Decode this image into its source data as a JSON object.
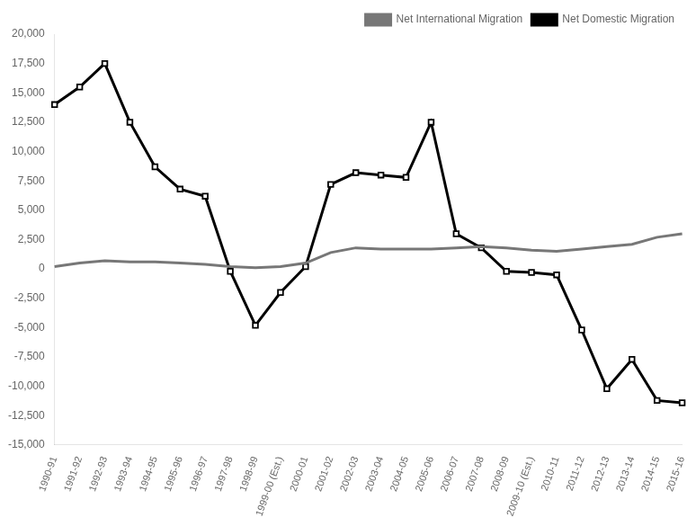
{
  "chart_data": {
    "type": "line",
    "categories": [
      "1990-91",
      "1991-92",
      "1992-93",
      "1993-94",
      "1994-95",
      "1995-96",
      "1996-97",
      "1997-98",
      "1998-99",
      "1999-00 (Est.)",
      "2000-01",
      "2001-02",
      "2002-03",
      "2003-04",
      "2004-05",
      "2005-06",
      "2006-07",
      "2007-08",
      "2008-09",
      "2009-10 (Est.)",
      "2010-11",
      "2011-12",
      "2012-13",
      "2013-14",
      "2014-15",
      "2015-16"
    ],
    "series": [
      {
        "name": "Net International Migration",
        "color": "#777777",
        "marker": "none",
        "values": [
          200,
          500,
          700,
          600,
          600,
          500,
          400,
          200,
          100,
          200,
          500,
          1400,
          1800,
          1700,
          1700,
          1700,
          1800,
          1900,
          1800,
          1600,
          1500,
          1700,
          1900,
          2100,
          2700,
          3000
        ]
      },
      {
        "name": "Net Domestic Migration",
        "color": "#000000",
        "marker": "square",
        "values": [
          14000,
          15500,
          17500,
          12500,
          8700,
          6800,
          6200,
          -200,
          -4800,
          -2000,
          200,
          7200,
          8200,
          8000,
          7800,
          12500,
          3000,
          1800,
          -200,
          -300,
          -500,
          -5200,
          -10200,
          -7700,
          -11200,
          -11400
        ]
      }
    ],
    "ylim": [
      -15000,
      20000
    ],
    "yticks": [
      {
        "value": -15000,
        "label": "-15,000"
      },
      {
        "value": -12500,
        "label": "-12,500"
      },
      {
        "value": -10000,
        "label": "-10,000"
      },
      {
        "value": -7500,
        "label": "-7,500"
      },
      {
        "value": -5000,
        "label": "-5,000"
      },
      {
        "value": -2500,
        "label": "-2,500"
      },
      0,
      {
        "value": 2500,
        "label": "2,500"
      },
      {
        "value": 5000,
        "label": "5,000"
      },
      {
        "value": 7500,
        "label": "7,500"
      },
      {
        "value": 10000,
        "label": "10,000"
      },
      {
        "value": 12500,
        "label": "12,500"
      },
      {
        "value": 15000,
        "label": "15,000"
      },
      {
        "value": 17500,
        "label": "17,500"
      },
      {
        "value": 20000,
        "label": "20,000"
      }
    ],
    "grid": false,
    "legend": "upper right"
  }
}
